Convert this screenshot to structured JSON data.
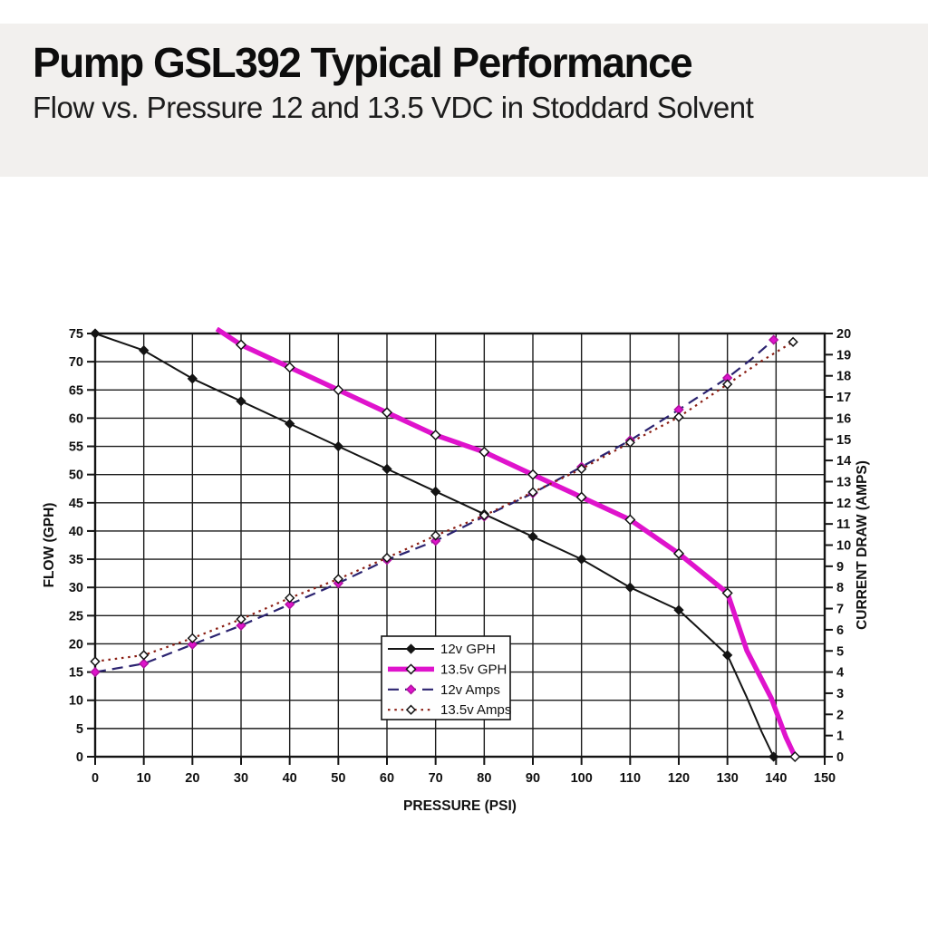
{
  "header": {
    "title": "Pump GSL392 Typical Performance",
    "subtitle": "Flow vs. Pressure 12 and 13.5 VDC in Stoddard Solvent"
  },
  "chart_data": {
    "type": "line",
    "title": "Pump GSL392 Typical Performance",
    "subtitle": "Flow vs. Pressure 12 and 13.5 VDC in Stoddard Solvent",
    "xlabel": "PRESSURE (PSI)",
    "ylabel_left": "FLOW (GPH)",
    "ylabel_right": "CURRENT DRAW (AMPS)",
    "grid": true,
    "legend_position": "inside-bottom-center-left",
    "x_axis": {
      "min": 0,
      "max": 150,
      "tick_step": 10
    },
    "y_left": {
      "min": 0,
      "max": 75,
      "tick_step": 5
    },
    "y_right": {
      "min": 0,
      "max": 20,
      "tick_step": 1
    },
    "colors": {
      "black": "#141414",
      "magenta": "#DF13CC",
      "navy": "#2B2370",
      "dark_red": "#8A1D12",
      "grid": "#1c1c1c",
      "panel_bg": "#ffffff",
      "band_bg": "#f2f0ee"
    },
    "series": [
      {
        "id": "12v-gph",
        "name": "12v GPH",
        "axis": "left",
        "color": "#141414",
        "line_width": 2,
        "dash": "",
        "marker_shape": "diamond",
        "marker_fill": "#141414",
        "marker_stroke": "#141414",
        "marker_size": 4.6,
        "points": [
          [
            0,
            75,
            1
          ],
          [
            10,
            72,
            1
          ],
          [
            20,
            67,
            1
          ],
          [
            30,
            63,
            1
          ],
          [
            40,
            59,
            1
          ],
          [
            50,
            55,
            1
          ],
          [
            60,
            51,
            1
          ],
          [
            70,
            47,
            1
          ],
          [
            80,
            43,
            1
          ],
          [
            90,
            39,
            1
          ],
          [
            100,
            35,
            1
          ],
          [
            110,
            30,
            1
          ],
          [
            120,
            26,
            1
          ],
          [
            130,
            18,
            1
          ],
          [
            134,
            10.5,
            0
          ],
          [
            137,
            4.5,
            0
          ],
          [
            139.5,
            0,
            1
          ]
        ]
      },
      {
        "id": "13_5v-gph",
        "name": "13.5v GPH",
        "axis": "left",
        "color": "#DF13CC",
        "line_width": 5.5,
        "dash": "",
        "marker_shape": "diamond",
        "marker_fill": "#ffffff",
        "marker_stroke": "#141414",
        "marker_size": 5,
        "points": [
          [
            25,
            75.8,
            0
          ],
          [
            30,
            73,
            1
          ],
          [
            40,
            69,
            1
          ],
          [
            50,
            65,
            1
          ],
          [
            60,
            61,
            1
          ],
          [
            70,
            57,
            1
          ],
          [
            80,
            54,
            1
          ],
          [
            90,
            50,
            1
          ],
          [
            100,
            46,
            1
          ],
          [
            110,
            42,
            1
          ],
          [
            120,
            36,
            1
          ],
          [
            130,
            29,
            1
          ],
          [
            134,
            18.8,
            0
          ],
          [
            139,
            10.4,
            0
          ],
          [
            142,
            3.5,
            0
          ],
          [
            143.9,
            0,
            1
          ]
        ]
      },
      {
        "id": "12v-amps",
        "name": "12v Amps",
        "axis": "right",
        "color": "#2B2370",
        "line_width": 2.2,
        "dash": "12 7",
        "marker_shape": "diamond",
        "marker_fill": "#DF13CC",
        "marker_stroke": "#B010A0",
        "marker_size": 4.6,
        "points": [
          [
            0,
            4.0,
            1
          ],
          [
            10,
            4.4,
            1
          ],
          [
            20,
            5.3,
            1
          ],
          [
            30,
            6.2,
            1
          ],
          [
            40,
            7.2,
            1
          ],
          [
            50,
            8.2,
            1
          ],
          [
            60,
            9.3,
            1
          ],
          [
            70,
            10.2,
            1
          ],
          [
            80,
            11.35,
            1
          ],
          [
            90,
            12.45,
            1
          ],
          [
            100,
            13.7,
            1
          ],
          [
            110,
            14.95,
            1
          ],
          [
            120,
            16.4,
            1
          ],
          [
            130,
            17.9,
            1
          ],
          [
            135,
            18.8,
            0
          ],
          [
            139.5,
            19.7,
            1
          ]
        ]
      },
      {
        "id": "13_5v-amps",
        "name": "13.5v Amps",
        "axis": "right",
        "color": "#8A1D12",
        "line_width": 2.2,
        "dash": "2.5 4.8",
        "marker_shape": "diamond",
        "marker_fill": "#ffffff",
        "marker_stroke": "#141414",
        "marker_size": 4.6,
        "points": [
          [
            0,
            4.5,
            1
          ],
          [
            10,
            4.8,
            1
          ],
          [
            20,
            5.6,
            1
          ],
          [
            30,
            6.5,
            1
          ],
          [
            40,
            7.5,
            1
          ],
          [
            50,
            8.4,
            1
          ],
          [
            60,
            9.4,
            1
          ],
          [
            70,
            10.45,
            1
          ],
          [
            80,
            11.4,
            1
          ],
          [
            90,
            12.5,
            1
          ],
          [
            100,
            13.6,
            1
          ],
          [
            110,
            14.85,
            1
          ],
          [
            120,
            16.05,
            1
          ],
          [
            130,
            17.6,
            1
          ],
          [
            137,
            18.7,
            0
          ],
          [
            143.5,
            19.6,
            1
          ]
        ]
      }
    ]
  }
}
